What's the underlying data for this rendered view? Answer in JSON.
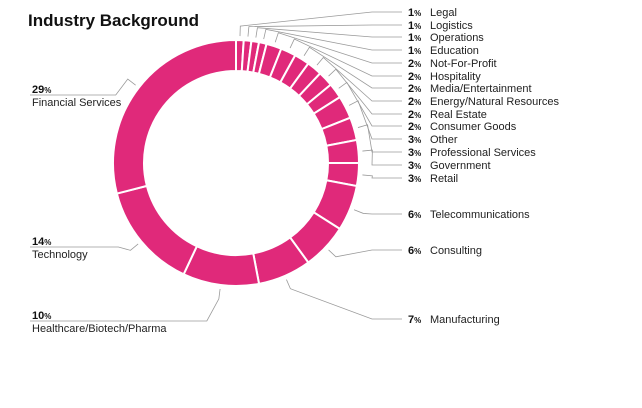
{
  "chart_data": {
    "type": "pie",
    "variant": "donut",
    "title": "Industry Background",
    "color": "#e0297a",
    "categories": [
      "Legal",
      "Logistics",
      "Operations",
      "Education",
      "Not-For-Profit",
      "Hospitality",
      "Media/Entertainment",
      "Energy/Natural Resources",
      "Real Estate",
      "Consumer Goods",
      "Other",
      "Professional Services",
      "Government",
      "Retail",
      "Telecommunications",
      "Consulting",
      "Manufacturing",
      "Healthcare/Biotech/Pharma",
      "Technology",
      "Financial Services"
    ],
    "values": [
      1,
      1,
      1,
      1,
      2,
      2,
      2,
      2,
      2,
      2,
      3,
      3,
      3,
      3,
      6,
      6,
      7,
      10,
      14,
      29
    ],
    "value_suffix": "%"
  }
}
